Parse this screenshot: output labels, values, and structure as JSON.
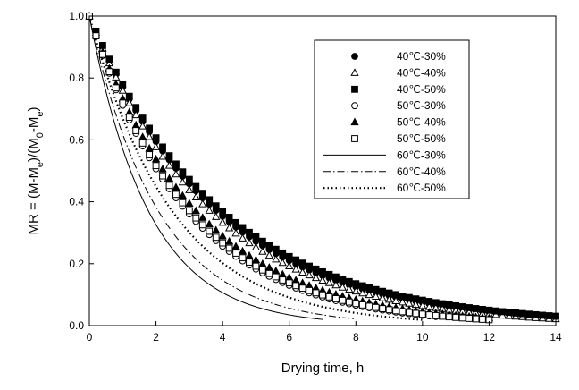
{
  "chart_data": {
    "type": "scatter",
    "xlabel": "Drying time, h",
    "ylabel_parts": [
      "MR = (M-M",
      "e",
      ")/(M",
      "0",
      "-M",
      "e",
      ")"
    ],
    "xlim": [
      0,
      14
    ],
    "ylim": [
      0,
      1.0
    ],
    "xticks": [
      "0",
      "2",
      "4",
      "6",
      "8",
      "10",
      "12",
      "14"
    ],
    "yticks": [
      "0.0",
      "0.2",
      "0.4",
      "0.6",
      "0.8",
      "1.0"
    ],
    "legend_position": "top-right",
    "grid": false,
    "series": [
      {
        "name": "40℃-30%",
        "marker": "circle",
        "fill": "filled",
        "tmax": 14,
        "k": 0.26,
        "step": 0.2
      },
      {
        "name": "40℃-40%",
        "marker": "triangle",
        "fill": "open",
        "tmax": 14,
        "k": 0.275,
        "step": 0.2
      },
      {
        "name": "40℃-50%",
        "marker": "square",
        "fill": "filled",
        "tmax": 14,
        "k": 0.25,
        "step": 0.2
      },
      {
        "name": "50℃-30%",
        "marker": "circle",
        "fill": "open",
        "tmax": 10.5,
        "k": 0.34,
        "step": 0.2
      },
      {
        "name": "50℃-40%",
        "marker": "triangle",
        "fill": "filled",
        "tmax": 12,
        "k": 0.31,
        "step": 0.2
      },
      {
        "name": "50℃-50%",
        "marker": "square",
        "fill": "open",
        "tmax": 12,
        "k": 0.33,
        "step": 0.2
      },
      {
        "name": "60℃-30%",
        "line": "solid",
        "tmax": 7,
        "k": 0.56
      },
      {
        "name": "60℃-40%",
        "line": "dashdot",
        "tmax": 8,
        "k": 0.48
      },
      {
        "name": "60℃-50%",
        "line": "dotted",
        "tmax": 10,
        "k": 0.4
      }
    ]
  }
}
